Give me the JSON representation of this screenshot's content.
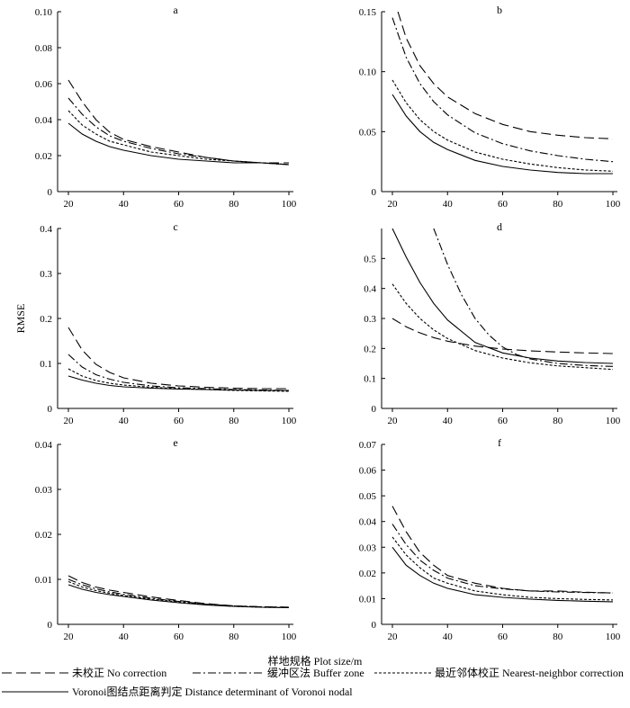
{
  "ylabel": "RMSE",
  "xlabel": "样地规格 Plot size/m",
  "legend": [
    {
      "key": "none",
      "label": "未校正 No correction",
      "dash": "11,5"
    },
    {
      "key": "buffer",
      "label": "缓冲区法 Buffer zone",
      "dash": "9,3,2,3"
    },
    {
      "key": "nearest",
      "label": "最近邻体校正 Nearest-neighbor correction",
      "dash": "3,2"
    },
    {
      "key": "voronoi",
      "label": "Voronoi图结点距离判定 Distance determinant of Voronoi nodal",
      "dash": ""
    }
  ],
  "chart_data": [
    {
      "id": "a",
      "type": "line",
      "title": "a",
      "xlim": [
        20,
        100
      ],
      "ylim": [
        0,
        0.1
      ],
      "xticks": [
        "20",
        "40",
        "60",
        "80",
        "100"
      ],
      "yticks": [
        "0",
        "0.02",
        "0.04",
        "0.06",
        "0.08",
        "0.10"
      ],
      "series": [
        {
          "name": "未校正 No correction",
          "x": [
            20,
            25,
            30,
            35,
            40,
            50,
            60,
            70,
            80,
            90,
            100
          ],
          "y": [
            0.062,
            0.05,
            0.04,
            0.033,
            0.029,
            0.025,
            0.022,
            0.019,
            0.017,
            0.016,
            0.016
          ]
        },
        {
          "name": "缓冲区法 Buffer zone",
          "x": [
            20,
            25,
            30,
            35,
            40,
            50,
            60,
            70,
            80,
            90,
            100
          ],
          "y": [
            0.052,
            0.043,
            0.036,
            0.031,
            0.028,
            0.024,
            0.021,
            0.019,
            0.017,
            0.016,
            0.015
          ]
        },
        {
          "name": "最近邻体校正 Nearest-neighbor correction",
          "x": [
            20,
            25,
            30,
            35,
            40,
            50,
            60,
            70,
            80,
            90,
            100
          ],
          "y": [
            0.045,
            0.037,
            0.032,
            0.028,
            0.026,
            0.022,
            0.02,
            0.018,
            0.017,
            0.016,
            0.015
          ]
        },
        {
          "name": "Voronoi图结点距离判定 Distance determinant of Voronoi nodal",
          "x": [
            20,
            25,
            30,
            35,
            40,
            50,
            60,
            70,
            80,
            90,
            100
          ],
          "y": [
            0.038,
            0.032,
            0.028,
            0.025,
            0.023,
            0.02,
            0.018,
            0.017,
            0.016,
            0.016,
            0.015
          ]
        }
      ]
    },
    {
      "id": "b",
      "type": "line",
      "title": "b",
      "xlim": [
        20,
        100
      ],
      "ylim": [
        0,
        0.15
      ],
      "xticks": [
        "20",
        "40",
        "60",
        "80",
        "100"
      ],
      "yticks": [
        "0",
        "0.05",
        "0.10",
        "0.15"
      ],
      "series": [
        {
          "name": "未校正 No correction",
          "x": [
            22,
            25,
            30,
            35,
            40,
            50,
            60,
            70,
            80,
            90,
            100
          ],
          "y": [
            0.15,
            0.128,
            0.105,
            0.09,
            0.079,
            0.065,
            0.056,
            0.05,
            0.047,
            0.045,
            0.044
          ]
        },
        {
          "name": "缓冲区法 Buffer zone",
          "x": [
            20,
            25,
            30,
            35,
            40,
            50,
            60,
            70,
            80,
            90,
            100
          ],
          "y": [
            0.145,
            0.112,
            0.09,
            0.075,
            0.064,
            0.049,
            0.04,
            0.034,
            0.03,
            0.027,
            0.025
          ]
        },
        {
          "name": "最近邻体校正 Nearest-neighbor correction",
          "x": [
            20,
            25,
            30,
            35,
            40,
            50,
            60,
            70,
            80,
            90,
            100
          ],
          "y": [
            0.093,
            0.074,
            0.06,
            0.05,
            0.043,
            0.033,
            0.027,
            0.023,
            0.02,
            0.018,
            0.017
          ]
        },
        {
          "name": "Voronoi图结点距离判定 Distance determinant of Voronoi nodal",
          "x": [
            20,
            25,
            30,
            35,
            40,
            50,
            60,
            70,
            80,
            90,
            100
          ],
          "y": [
            0.081,
            0.063,
            0.05,
            0.041,
            0.035,
            0.026,
            0.021,
            0.018,
            0.016,
            0.015,
            0.015
          ]
        }
      ]
    },
    {
      "id": "c",
      "type": "line",
      "title": "c",
      "xlim": [
        20,
        100
      ],
      "ylim": [
        0,
        0.4
      ],
      "xticks": [
        "20",
        "40",
        "60",
        "80",
        "100"
      ],
      "yticks": [
        "0",
        "0.1",
        "0.2",
        "0.3",
        "0.4"
      ],
      "series": [
        {
          "name": "未校正 No correction",
          "x": [
            20,
            25,
            30,
            35,
            40,
            50,
            60,
            70,
            80,
            90,
            100
          ],
          "y": [
            0.18,
            0.13,
            0.098,
            0.08,
            0.068,
            0.056,
            0.05,
            0.047,
            0.045,
            0.044,
            0.044
          ]
        },
        {
          "name": "缓冲区法 Buffer zone",
          "x": [
            20,
            25,
            30,
            35,
            40,
            50,
            60,
            70,
            80,
            90,
            100
          ],
          "y": [
            0.12,
            0.092,
            0.075,
            0.065,
            0.058,
            0.05,
            0.046,
            0.044,
            0.042,
            0.041,
            0.04
          ]
        },
        {
          "name": "最近邻体校正 Nearest-neighbor correction",
          "x": [
            20,
            25,
            30,
            35,
            40,
            50,
            60,
            70,
            80,
            90,
            100
          ],
          "y": [
            0.088,
            0.072,
            0.062,
            0.056,
            0.052,
            0.047,
            0.044,
            0.042,
            0.04,
            0.039,
            0.038
          ]
        },
        {
          "name": "Voronoi图结点距离判定 Distance determinant of Voronoi nodal",
          "x": [
            20,
            25,
            30,
            35,
            40,
            50,
            60,
            70,
            80,
            90,
            100
          ],
          "y": [
            0.072,
            0.063,
            0.056,
            0.051,
            0.048,
            0.045,
            0.043,
            0.042,
            0.041,
            0.04,
            0.04
          ]
        }
      ]
    },
    {
      "id": "d",
      "type": "line",
      "title": "d",
      "xlim": [
        20,
        100
      ],
      "ylim": [
        0,
        0.6
      ],
      "xticks": [
        "20",
        "40",
        "60",
        "80",
        "100"
      ],
      "yticks": [
        "0",
        "0.1",
        "0.2",
        "0.3",
        "0.4",
        "0.5"
      ],
      "series": [
        {
          "name": "未校正 No correction",
          "x": [
            20,
            25,
            30,
            35,
            40,
            50,
            60,
            70,
            80,
            90,
            100
          ],
          "y": [
            0.3,
            0.272,
            0.252,
            0.236,
            0.224,
            0.208,
            0.198,
            0.192,
            0.188,
            0.185,
            0.183
          ]
        },
        {
          "name": "缓冲区法 Buffer zone",
          "x": [
            35,
            40,
            45,
            50,
            55,
            60,
            65,
            70,
            80,
            90,
            100
          ],
          "y": [
            0.6,
            0.48,
            0.38,
            0.3,
            0.245,
            0.205,
            0.18,
            0.165,
            0.15,
            0.143,
            0.14
          ]
        },
        {
          "name": "最近邻体校正 Nearest-neighbor correction",
          "x": [
            20,
            25,
            30,
            35,
            40,
            50,
            60,
            70,
            80,
            90,
            100
          ],
          "y": [
            0.415,
            0.35,
            0.3,
            0.262,
            0.233,
            0.193,
            0.168,
            0.152,
            0.142,
            0.136,
            0.13
          ]
        },
        {
          "name": "Voronoi图结点距离判定 Distance determinant of Voronoi nodal",
          "x": [
            20,
            25,
            30,
            35,
            40,
            50,
            60,
            70,
            80,
            90,
            100
          ],
          "y": [
            0.6,
            0.505,
            0.42,
            0.35,
            0.295,
            0.22,
            0.185,
            0.168,
            0.158,
            0.153,
            0.15
          ]
        }
      ]
    },
    {
      "id": "e",
      "type": "line",
      "title": "e",
      "xlim": [
        20,
        100
      ],
      "ylim": [
        0,
        0.04
      ],
      "xticks": [
        "20",
        "40",
        "60",
        "80",
        "100"
      ],
      "yticks": [
        "0",
        "0.01",
        "0.02",
        "0.03",
        "0.04"
      ],
      "series": [
        {
          "name": "未校正 No correction",
          "x": [
            20,
            25,
            30,
            35,
            40,
            50,
            60,
            70,
            80,
            90,
            100
          ],
          "y": [
            0.0108,
            0.0093,
            0.0083,
            0.0076,
            0.0071,
            0.0061,
            0.0053,
            0.0046,
            0.0041,
            0.0039,
            0.0038
          ]
        },
        {
          "name": "缓冲区法 Buffer zone",
          "x": [
            20,
            25,
            30,
            35,
            40,
            50,
            60,
            70,
            80,
            90,
            100
          ],
          "y": [
            0.01,
            0.0088,
            0.0079,
            0.0072,
            0.0067,
            0.0058,
            0.0051,
            0.0045,
            0.0041,
            0.0039,
            0.0038
          ]
        },
        {
          "name": "最近邻体校正 Nearest-neighbor correction",
          "x": [
            20,
            25,
            30,
            35,
            40,
            50,
            60,
            70,
            80,
            90,
            100
          ],
          "y": [
            0.0095,
            0.0083,
            0.0075,
            0.0069,
            0.0064,
            0.0056,
            0.005,
            0.0044,
            0.004,
            0.0038,
            0.0037
          ]
        },
        {
          "name": "Voronoi图结点距离判定 Distance determinant of Voronoi nodal",
          "x": [
            20,
            25,
            30,
            35,
            40,
            50,
            60,
            70,
            80,
            90,
            100
          ],
          "y": [
            0.0088,
            0.0078,
            0.0071,
            0.0066,
            0.0062,
            0.0054,
            0.0048,
            0.0043,
            0.004,
            0.0038,
            0.0037
          ]
        }
      ]
    },
    {
      "id": "f",
      "type": "line",
      "title": "f",
      "xlim": [
        20,
        100
      ],
      "ylim": [
        0,
        0.07
      ],
      "xticks": [
        "20",
        "40",
        "60",
        "80",
        "100"
      ],
      "yticks": [
        "0",
        "0.01",
        "0.02",
        "0.03",
        "0.04",
        "0.05",
        "0.06",
        "0.07"
      ],
      "series": [
        {
          "name": "未校正 No correction",
          "x": [
            20,
            25,
            30,
            35,
            40,
            50,
            60,
            70,
            80,
            90,
            100
          ],
          "y": [
            0.046,
            0.036,
            0.028,
            0.023,
            0.019,
            0.016,
            0.014,
            0.013,
            0.013,
            0.0125,
            0.0122
          ]
        },
        {
          "name": "缓冲区法 Buffer zone",
          "x": [
            20,
            25,
            30,
            35,
            40,
            50,
            60,
            70,
            80,
            90,
            100
          ],
          "y": [
            0.039,
            0.031,
            0.025,
            0.021,
            0.018,
            0.015,
            0.0138,
            0.013,
            0.0126,
            0.0124,
            0.0122
          ]
        },
        {
          "name": "最近邻体校正 Nearest-neighbor correction",
          "x": [
            20,
            25,
            30,
            35,
            40,
            50,
            60,
            70,
            80,
            90,
            100
          ],
          "y": [
            0.034,
            0.027,
            0.022,
            0.018,
            0.016,
            0.013,
            0.0115,
            0.0105,
            0.01,
            0.0097,
            0.0095
          ]
        },
        {
          "name": "Voronoi图结点距离判定 Distance determinant of Voronoi nodal",
          "x": [
            20,
            25,
            30,
            35,
            40,
            50,
            60,
            70,
            80,
            90,
            100
          ],
          "y": [
            0.03,
            0.023,
            0.019,
            0.016,
            0.014,
            0.0115,
            0.0105,
            0.0098,
            0.0093,
            0.009,
            0.0088
          ]
        }
      ]
    }
  ]
}
